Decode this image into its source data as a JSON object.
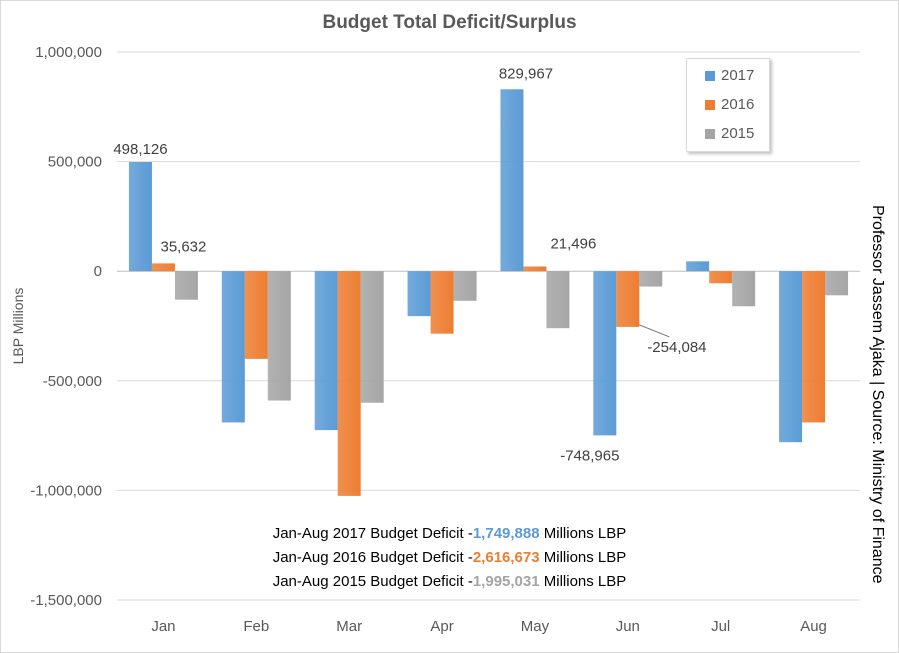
{
  "chart_data": {
    "type": "bar",
    "title": "Budget Total Deficit/Surplus",
    "ylabel": "LBP Millions",
    "side_note": "Professor Jassem Ajaka | Source: Ministry of Finance",
    "categories": [
      "Jan",
      "Feb",
      "Mar",
      "Apr",
      "May",
      "Jun",
      "Jul",
      "Aug"
    ],
    "ylim": [
      -1500000,
      1000000
    ],
    "yticks": [
      1000000,
      500000,
      0,
      -500000,
      -1000000,
      -1500000
    ],
    "ytick_labels": [
      "1,000,000",
      "500,000",
      "0",
      "-500,000",
      "-1,000,000",
      "-1,500,000"
    ],
    "grid": true,
    "legend_position": "top-right",
    "series": [
      {
        "name": "2017",
        "color": "#5b9bd5",
        "values": [
          498126,
          -690000,
          -725000,
          -205000,
          829967,
          -748965,
          45000,
          -780000
        ]
      },
      {
        "name": "2016",
        "color": "#ed7d31",
        "values": [
          35632,
          -400000,
          -1025000,
          -285000,
          21496,
          -254084,
          -55000,
          -690000
        ]
      },
      {
        "name": "2015",
        "color": "#a5a5a5",
        "values": [
          -130000,
          -590000,
          -600000,
          -135000,
          -260000,
          -70000,
          -160000,
          -110000
        ]
      }
    ],
    "data_labels": [
      {
        "series": 0,
        "index": 0,
        "text": "498,126"
      },
      {
        "series": 1,
        "index": 0,
        "text": "35,632"
      },
      {
        "series": 0,
        "index": 4,
        "text": "829,967"
      },
      {
        "series": 1,
        "index": 4,
        "text": "21,496"
      },
      {
        "series": 0,
        "index": 5,
        "text": "-748,965"
      },
      {
        "series": 1,
        "index": 5,
        "text": "-254,084"
      }
    ]
  },
  "notes": [
    {
      "prefix": "Jan-Aug 2017 Budget Deficit -",
      "value": "1,749,888",
      "suffix": " Millions LBP",
      "color": "#5b9bd5"
    },
    {
      "prefix": "Jan-Aug 2016 Budget Deficit -",
      "value": "2,616,673",
      "suffix": " Millions LBP",
      "color": "#ed7d31"
    },
    {
      "prefix": "Jan-Aug 2015 Budget Deficit -",
      "value": "1,995,031",
      "suffix": " Millions LBP",
      "color": "#a5a5a5"
    }
  ]
}
